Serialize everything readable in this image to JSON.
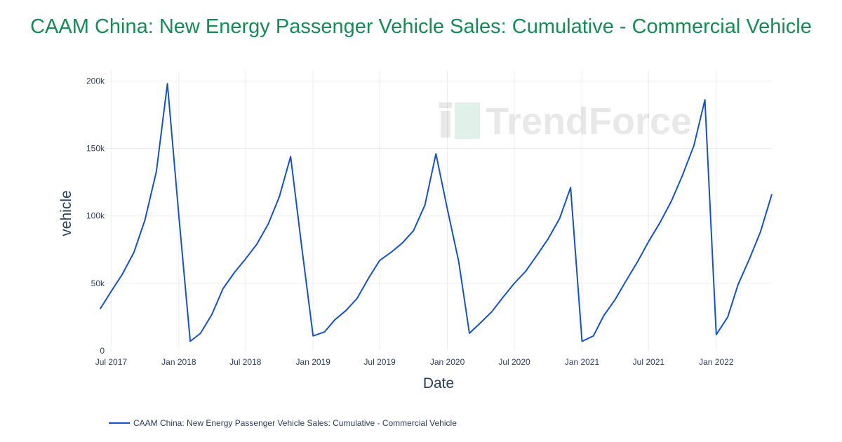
{
  "title": "CAAM China: New Energy Passenger Vehicle Sales: Cumulative - Commercial Vehicle",
  "watermark": "TrendForce",
  "colors": {
    "title": "#188a55",
    "line": "#1651c7",
    "grid": "#eeeeee",
    "text": "#2a3f5f"
  },
  "chart_data": {
    "type": "line",
    "xlabel": "Date",
    "ylabel": "vehicle",
    "grid": true,
    "legend_placement": "bottom-left",
    "x_ticks": [
      "Jul 2017",
      "Jan 2018",
      "Jul 2018",
      "Jan 2019",
      "Jul 2019",
      "Jan 2020",
      "Jul 2020",
      "Jan 2021",
      "Jul 2021",
      "Jan 2022"
    ],
    "x_tick_dates": [
      "2017-07",
      "2018-01",
      "2018-07",
      "2019-01",
      "2019-07",
      "2020-01",
      "2020-07",
      "2021-01",
      "2021-07",
      "2022-01"
    ],
    "y_ticks": [
      0,
      50000,
      100000,
      150000,
      200000
    ],
    "y_tick_labels": [
      "0",
      "50k",
      "100k",
      "150k",
      "200k"
    ],
    "xlim": [
      "2017-06-15",
      "2022-06"
    ],
    "ylim": [
      0,
      208000
    ],
    "series": [
      {
        "name": "CAAM China: New Energy Passenger Vehicle Sales: Cumulative - Commercial Vehicle",
        "x": [
          "2017-06",
          "2017-07",
          "2017-08",
          "2017-09",
          "2017-10",
          "2017-11",
          "2017-12",
          "2018-01",
          "2018-02",
          "2018-03",
          "2018-04",
          "2018-05",
          "2018-06",
          "2018-07",
          "2018-08",
          "2018-09",
          "2018-10",
          "2018-11",
          "2018-12",
          "2019-01",
          "2019-02",
          "2019-03",
          "2019-04",
          "2019-05",
          "2019-06",
          "2019-07",
          "2019-08",
          "2019-09",
          "2019-10",
          "2019-11",
          "2019-12",
          "2020-01",
          "2020-02",
          "2020-03",
          "2020-04",
          "2020-05",
          "2020-06",
          "2020-07",
          "2020-08",
          "2020-09",
          "2020-10",
          "2020-11",
          "2020-12",
          "2021-01",
          "2021-02",
          "2021-03",
          "2021-04",
          "2021-05",
          "2021-06",
          "2021-07",
          "2021-08",
          "2021-09",
          "2021-10",
          "2021-11",
          "2021-12",
          "2022-01",
          "2022-02",
          "2022-03",
          "2022-04",
          "2022-05",
          "2022-06"
        ],
        "values": [
          31000,
          44000,
          57000,
          73000,
          97000,
          133000,
          198000,
          100000,
          7000,
          13000,
          27000,
          46000,
          58000,
          68000,
          79000,
          94000,
          114000,
          144000,
          77000,
          11000,
          14000,
          23000,
          30000,
          39000,
          54000,
          67000,
          73000,
          80000,
          89000,
          108000,
          146000,
          105000,
          66000,
          13000,
          21000,
          29000,
          40000,
          50000,
          59000,
          71000,
          83000,
          98000,
          121000,
          7000,
          11000,
          26000,
          38000,
          52000,
          66000,
          81000,
          95000,
          111000,
          130000,
          152000,
          186000,
          12000,
          25000,
          49000,
          68000,
          88000,
          116000
        ]
      }
    ]
  }
}
